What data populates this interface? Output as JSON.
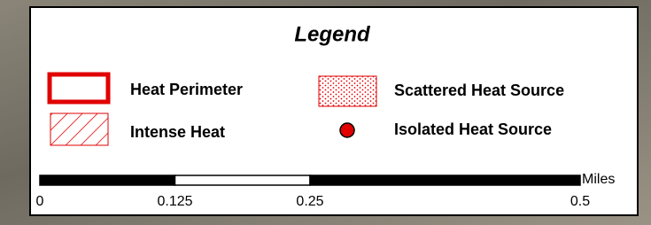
{
  "legend": {
    "title": "Legend",
    "items": [
      {
        "label": "Heat Perimeter"
      },
      {
        "label": "Intense Heat"
      },
      {
        "label": "Scattered Heat Source"
      },
      {
        "label": "Isolated Heat Source"
      }
    ]
  },
  "scale_bar": {
    "unit": "Miles",
    "ticks": [
      0,
      0.125,
      0.25,
      0.5
    ]
  }
}
